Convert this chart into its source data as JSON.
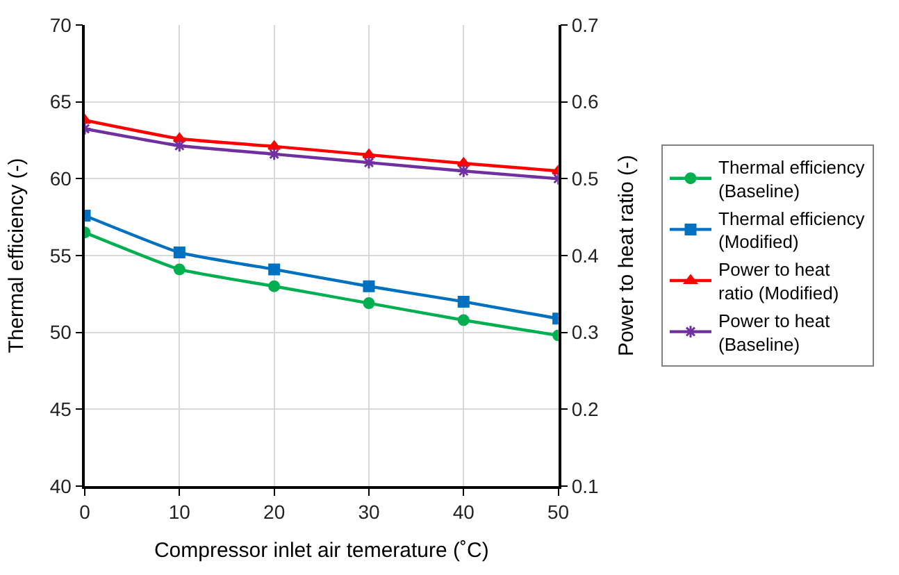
{
  "chart_data": {
    "type": "line",
    "x": [
      0,
      10,
      20,
      30,
      40,
      50
    ],
    "xlabel": "Compressor inlet air temerature (˚C)",
    "ylabel": "Thermal efficiency (-)",
    "y2label": "Power to heat ratio (-)",
    "xlim": [
      0,
      50
    ],
    "xticks": [
      0,
      10,
      20,
      30,
      40,
      50
    ],
    "ylim": [
      40,
      70
    ],
    "yticks": [
      40,
      45,
      50,
      55,
      60,
      65,
      70
    ],
    "y2lim": [
      0.1,
      0.7
    ],
    "y2ticks": [
      0.1,
      0.2,
      0.3,
      0.4,
      0.5,
      0.6,
      0.7
    ],
    "grid": true,
    "legend": "right",
    "series": [
      {
        "name": "Thermal efficiency (Baseline)",
        "color": "#00b050",
        "marker": "circle",
        "values": [
          56.5,
          54.1,
          53.0,
          51.9,
          50.8,
          49.8
        ]
      },
      {
        "name": "Thermal efficiency (Modified)",
        "color": "#0070c0",
        "marker": "square",
        "values": [
          57.6,
          55.2,
          54.1,
          53.0,
          52.0,
          50.9
        ]
      },
      {
        "name": "Power to heat ratio (Modified)",
        "color": "#ff0000",
        "marker": "triangle",
        "axis": "y2",
        "values": [
          0.576,
          0.552,
          0.542,
          0.531,
          0.52,
          0.51
        ]
      },
      {
        "name": "Power to heat (Baseline)",
        "color": "#7030a0",
        "marker": "cross",
        "axis": "y2",
        "values": [
          0.565,
          0.543,
          0.532,
          0.521,
          0.51,
          0.5
        ]
      }
    ]
  }
}
